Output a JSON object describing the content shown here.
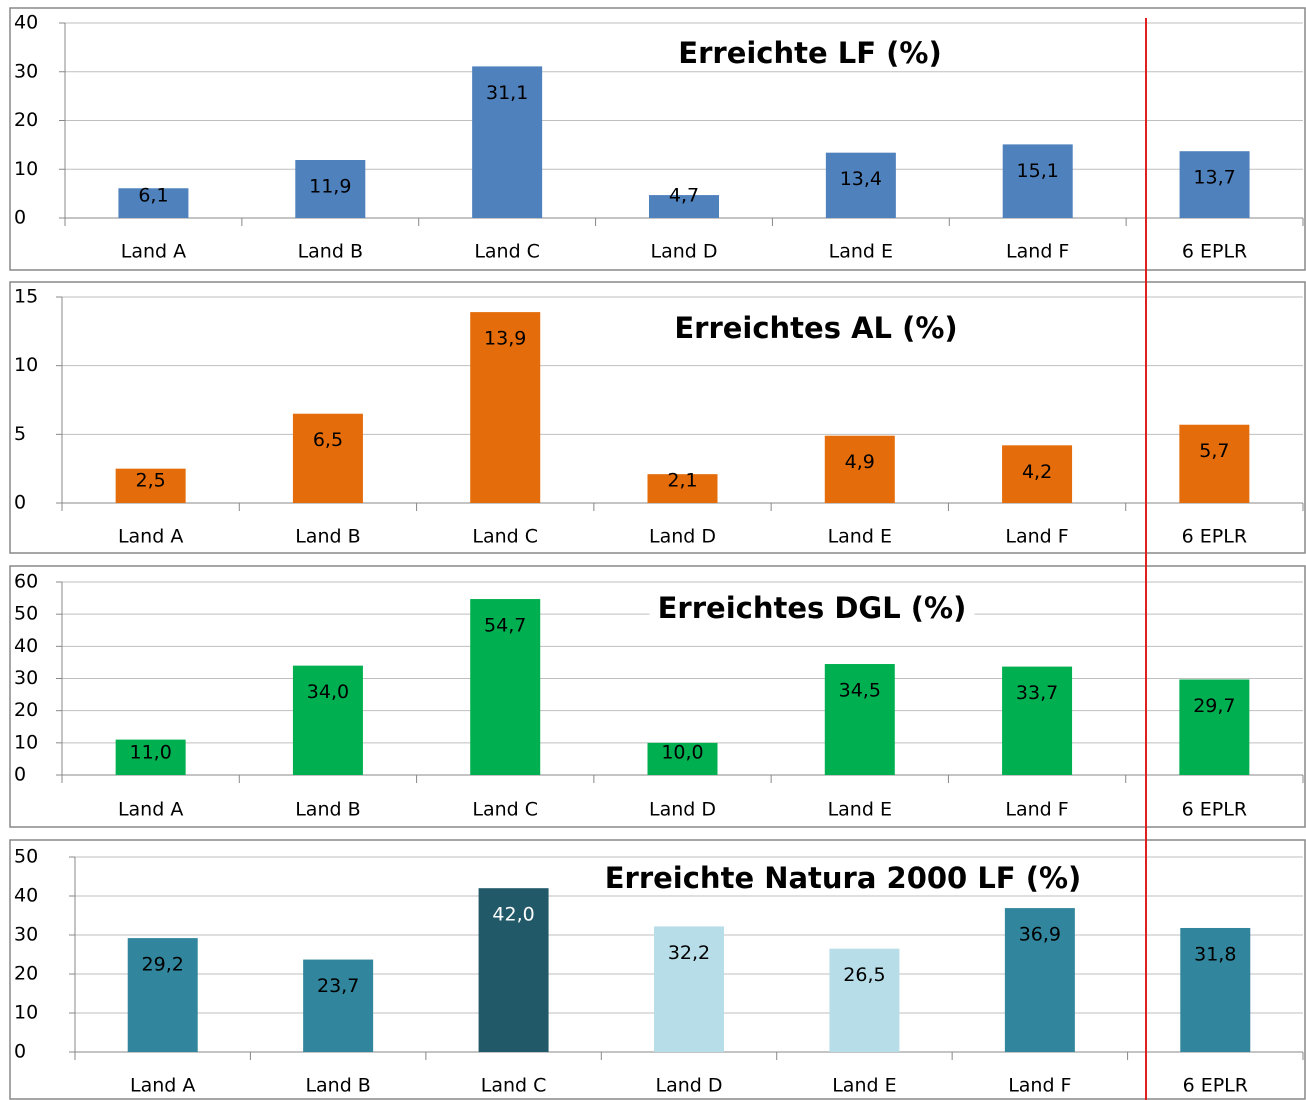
{
  "chart_data": [
    {
      "type": "bar",
      "title": "Erreichte LF (%)",
      "categories": [
        "Land A",
        "Land B",
        "Land C",
        "Land D",
        "Land E",
        "Land F",
        "6 EPLR"
      ],
      "values": [
        6.1,
        11.9,
        31.1,
        4.7,
        13.4,
        15.1,
        13.7
      ],
      "value_labels": [
        "6,1",
        "11,9",
        "31,1",
        "4,7",
        "13,4",
        "15,1",
        "13,7"
      ],
      "color": "#4f81bd",
      "ylim": [
        0,
        40
      ],
      "yticks": [
        0,
        10,
        20,
        30,
        40
      ],
      "grid": true
    },
    {
      "type": "bar",
      "title": "Erreichtes AL (%)",
      "categories": [
        "Land A",
        "Land B",
        "Land C",
        "Land D",
        "Land E",
        "Land F",
        "6 EPLR"
      ],
      "values": [
        2.5,
        6.5,
        13.9,
        2.1,
        4.9,
        4.2,
        5.7
      ],
      "value_labels": [
        "2,5",
        "6,5",
        "13,9",
        "2,1",
        "4,9",
        "4,2",
        "5,7"
      ],
      "color": "#e46c0a",
      "ylim": [
        0,
        15
      ],
      "yticks": [
        0,
        5,
        10,
        15
      ],
      "grid": true
    },
    {
      "type": "bar",
      "title": "Erreichtes DGL (%)",
      "categories": [
        "Land A",
        "Land B",
        "Land C",
        "Land D",
        "Land E",
        "Land F",
        "6 EPLR"
      ],
      "values": [
        11.0,
        34.0,
        54.7,
        10.0,
        34.5,
        33.7,
        29.7
      ],
      "value_labels": [
        "11,0",
        "34,0",
        "54,7",
        "10,0",
        "34,5",
        "33,7",
        "29,7"
      ],
      "color": "#00b050",
      "ylim": [
        0,
        60
      ],
      "yticks": [
        0,
        10,
        20,
        30,
        40,
        50,
        60
      ],
      "grid": true
    },
    {
      "type": "bar",
      "title": "Erreichte Natura 2000 LF (%)",
      "categories": [
        "Land A",
        "Land B",
        "Land C",
        "Land D",
        "Land E",
        "Land F",
        "6 EPLR"
      ],
      "values": [
        29.2,
        23.7,
        42.0,
        32.2,
        26.5,
        36.9,
        31.8
      ],
      "value_labels": [
        "29,2",
        "23,7",
        "42,0",
        "32,2",
        "26,5",
        "36,9",
        "31,8"
      ],
      "colors": [
        "#31859c",
        "#31859c",
        "#215968",
        "#b7dee8",
        "#b7dee8",
        "#31859c",
        "#31859c"
      ],
      "ylim": [
        0,
        50
      ],
      "yticks": [
        0,
        10,
        20,
        30,
        40,
        50
      ],
      "grid": true
    }
  ]
}
